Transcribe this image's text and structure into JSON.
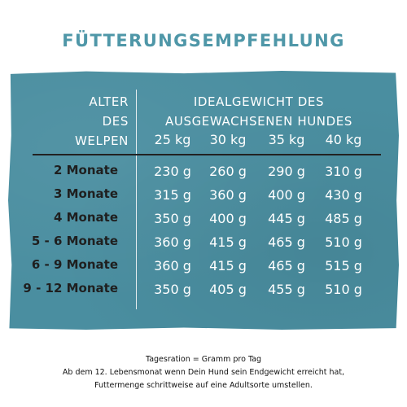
{
  "title": "FÜTTERUNGSEMPFEHLUNG",
  "header": {
    "age_line1": "ALTER",
    "age_line2": "DES",
    "age_line3": "WELPEN",
    "weight_line1": "IDEALGEWICHT DES",
    "weight_line2": "AUSGEWACHSENEN HUNDES"
  },
  "weights": [
    "25 kg",
    "30 kg",
    "35 kg",
    "40 kg"
  ],
  "rows": [
    {
      "age": "2 Monate",
      "values": [
        "230 g",
        "260 g",
        "290 g",
        "310 g"
      ]
    },
    {
      "age": "3 Monate",
      "values": [
        "315 g",
        "360 g",
        "400 g",
        "430 g"
      ]
    },
    {
      "age": "4 Monate",
      "values": [
        "350 g",
        "400 g",
        "445 g",
        "485 g"
      ]
    },
    {
      "age": "5 - 6 Monate",
      "values": [
        "360 g",
        "415 g",
        "465 g",
        "510 g"
      ]
    },
    {
      "age": "6 - 9 Monate",
      "values": [
        "360 g",
        "415 g",
        "465 g",
        "515 g"
      ]
    },
    {
      "age": "9 - 12 Monate",
      "values": [
        "350 g",
        "405 g",
        "455 g",
        "510 g"
      ]
    }
  ],
  "footer": {
    "line1": "Tagesration = Gramm pro Tag",
    "line2": "Ab dem 12. Lebensmonat wenn Dein Hund sein Endgewicht erreicht hat,",
    "line3": "Futtermenge schrittweise auf eine Adultsorte umstellen."
  },
  "colors": {
    "title": "#4f97a8",
    "card_background": "#4a8ea0",
    "header_text": "#ffffff",
    "age_text": "#1f1f1f",
    "divider": "#222222"
  }
}
